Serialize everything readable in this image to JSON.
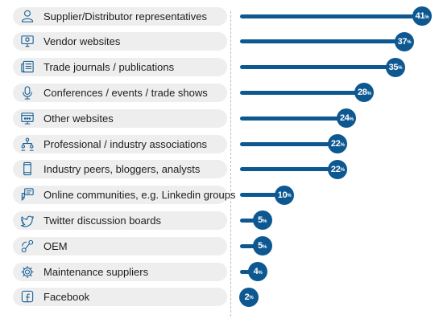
{
  "chart_data": {
    "type": "bar",
    "orientation": "horizontal",
    "title": "",
    "xlabel": "",
    "ylabel": "",
    "value_suffix": "%",
    "xlim": [
      0,
      41
    ],
    "grid": false,
    "categories": [
      {
        "label": "Supplier/Distributor representatives",
        "value": 41,
        "icon": "person-icon"
      },
      {
        "label": "Vendor websites",
        "value": 37,
        "icon": "monitor-icon"
      },
      {
        "label": "Trade journals / publications",
        "value": 35,
        "icon": "newspaper-icon"
      },
      {
        "label": "Conferences / events / trade shows",
        "value": 28,
        "icon": "microphone-icon"
      },
      {
        "label": "Other websites",
        "value": 24,
        "icon": "browser-icon"
      },
      {
        "label": "Professional / industry associations",
        "value": 22,
        "icon": "network-icon"
      },
      {
        "label": "Industry peers, bloggers, analysts",
        "value": 22,
        "icon": "phone-icon"
      },
      {
        "label": "Online communities, e.g. Linkedin groups",
        "value": 10,
        "icon": "chat-icon"
      },
      {
        "label": "Twitter discussion boards",
        "value": 5,
        "icon": "twitter-icon"
      },
      {
        "label": "OEM",
        "value": 5,
        "icon": "connection-icon"
      },
      {
        "label": "Maintenance suppliers",
        "value": 4,
        "icon": "gear-icon"
      },
      {
        "label": "Facebook",
        "value": 2,
        "icon": "facebook-icon"
      }
    ]
  },
  "colors": {
    "bar": "#0d5891",
    "label_background": "#eeeeee",
    "icon_stroke": "#0d5891"
  }
}
